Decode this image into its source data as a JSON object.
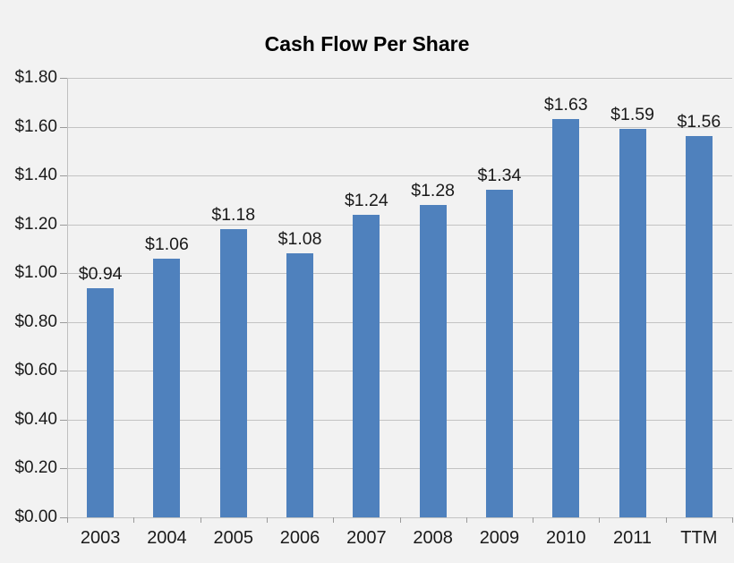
{
  "title": "Cash Flow Per Share",
  "colors": {
    "bar": "#4F81BD",
    "gridline": "#C3C3C3",
    "axis": "#BFBFBF",
    "background": "#F2F2F2",
    "text": "#1A1A1A"
  },
  "chart_data": {
    "type": "bar",
    "title": "Cash Flow Per Share",
    "categories": [
      "2003",
      "2004",
      "2005",
      "2006",
      "2007",
      "2008",
      "2009",
      "2010",
      "2011",
      "TTM"
    ],
    "values": [
      0.94,
      1.06,
      1.18,
      1.08,
      1.24,
      1.28,
      1.34,
      1.63,
      1.59,
      1.56
    ],
    "data_labels": [
      "$0.94",
      "$1.06",
      "$1.18",
      "$1.08",
      "$1.24",
      "$1.28",
      "$1.34",
      "$1.63",
      "$1.59",
      "$1.56"
    ],
    "y_tick_labels": [
      "$0.00",
      "$0.20",
      "$0.40",
      "$0.60",
      "$0.80",
      "$1.00",
      "$1.20",
      "$1.40",
      "$1.60",
      "$1.80"
    ],
    "y_tick_values": [
      0.0,
      0.2,
      0.4,
      0.6,
      0.8,
      1.0,
      1.2,
      1.4,
      1.6,
      1.8
    ],
    "ylim": [
      0,
      1.8
    ],
    "xlabel": "",
    "ylabel": "",
    "grid": "horizontal",
    "legend": "none"
  }
}
